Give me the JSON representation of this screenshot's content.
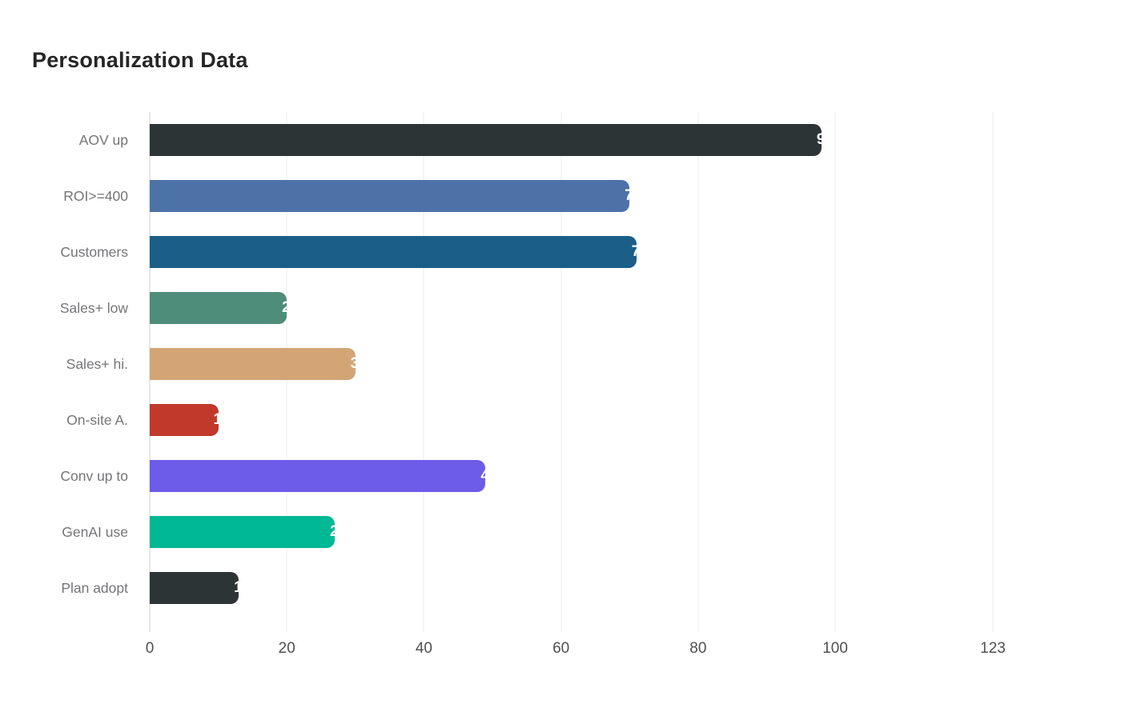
{
  "chart_data": {
    "type": "bar",
    "orientation": "horizontal",
    "title": "Personalization Data",
    "categories": [
      "AOV up",
      "ROI>=400",
      "Customers",
      "Sales+ low",
      "Sales+ hi.",
      "On-site A.",
      "Conv up to",
      "GenAI use",
      "Plan adopt"
    ],
    "values": [
      98,
      70,
      71,
      20,
      30,
      10,
      49,
      27,
      13
    ],
    "bar_colors": [
      "#2d3436",
      "#4c72a8",
      "#1b5e87",
      "#4e8d7a",
      "#d3a575",
      "#c0392b",
      "#6c5ce7",
      "#00b894",
      "#2d3436"
    ],
    "value_label_color": "#ffffff",
    "x_ticks": [
      0,
      20,
      40,
      60,
      80,
      100,
      123
    ],
    "xlim": [
      0,
      123
    ],
    "xlabel": "",
    "ylabel": "",
    "grid": true,
    "gridline_color": "#ebebeb",
    "zero_line_color": "#cccccc",
    "background_color": "#ffffff",
    "title_color": "#262626",
    "category_label_color": "#757578",
    "tick_label_color": "#4f4f4f"
  }
}
